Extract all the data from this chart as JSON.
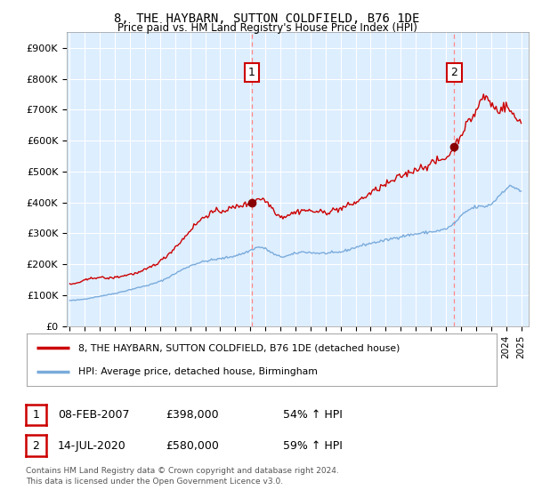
{
  "title": "8, THE HAYBARN, SUTTON COLDFIELD, B76 1DE",
  "subtitle": "Price paid vs. HM Land Registry's House Price Index (HPI)",
  "ylabel_ticks": [
    "£0",
    "£100K",
    "£200K",
    "£300K",
    "£400K",
    "£500K",
    "£600K",
    "£700K",
    "£800K",
    "£900K"
  ],
  "ytick_values": [
    0,
    100000,
    200000,
    300000,
    400000,
    500000,
    600000,
    700000,
    800000,
    900000
  ],
  "ylim": [
    0,
    950000
  ],
  "xlim_start": 1994.8,
  "xlim_end": 2025.5,
  "ann1_x": 2007.1,
  "ann1_y": 398000,
  "ann2_x": 2020.55,
  "ann2_y": 580000,
  "ann1_label": "1",
  "ann2_label": "2",
  "legend_line1": "8, THE HAYBARN, SUTTON COLDFIELD, B76 1DE (detached house)",
  "legend_line2": "HPI: Average price, detached house, Birmingham",
  "table_row1": [
    "1",
    "08-FEB-2007",
    "£398,000",
    "54% ↑ HPI"
  ],
  "table_row2": [
    "2",
    "14-JUL-2020",
    "£580,000",
    "59% ↑ HPI"
  ],
  "footnote": "Contains HM Land Registry data © Crown copyright and database right 2024.\nThis data is licensed under the Open Government Licence v3.0.",
  "red_color": "#cc0000",
  "blue_color": "#7aabdb",
  "chart_bg": "#ddeeff",
  "dashed_color": "#ff8888",
  "background_color": "#ffffff",
  "grid_color": "#ffffff"
}
